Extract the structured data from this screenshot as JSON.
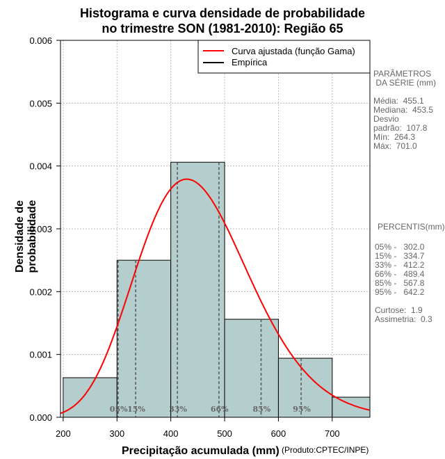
{
  "chart_data": {
    "type": "histogram",
    "title_line1": "Histograma e curva densidade de probabilidade",
    "title_line2": "no trimestre SON (1981-2010): Região 65",
    "xlabel": "Precipitação acumulada (mm)",
    "ylabel": "Densidade de probabilidade",
    "source_note": "(Produto:CPTEC/INPE)",
    "xlim": [
      195,
      770
    ],
    "ylim": [
      0,
      0.006
    ],
    "x_ticks": [
      200,
      300,
      400,
      500,
      600,
      700
    ],
    "y_ticks": [
      "0.000",
      "0.001",
      "0.002",
      "0.003",
      "0.004",
      "0.005",
      "0.006"
    ],
    "bins": [
      {
        "from": 200,
        "to": 300,
        "density": 0.00063
      },
      {
        "from": 300,
        "to": 400,
        "density": 0.0025
      },
      {
        "from": 400,
        "to": 500,
        "density": 0.00406
      },
      {
        "from": 500,
        "to": 600,
        "density": 0.00156
      },
      {
        "from": 600,
        "to": 700,
        "density": 0.00094
      },
      {
        "from": 700,
        "to": 800,
        "density": 0.00032
      }
    ],
    "gamma_fit": {
      "mean": 455.1,
      "sd": 107.8
    },
    "percentile_lines": [
      {
        "label": "05%",
        "x": 302.0
      },
      {
        "label": "15%",
        "x": 334.7
      },
      {
        "label": "33%",
        "x": 412.2
      },
      {
        "label": "66%",
        "x": 489.4
      },
      {
        "label": "85%",
        "x": 567.8
      },
      {
        "label": "95%",
        "x": 642.2
      }
    ],
    "legend": [
      {
        "label": "Curva ajustada (função Gama)",
        "color": "#ff0000"
      },
      {
        "label": "Empírica",
        "color": "#000000"
      }
    ],
    "colors": {
      "bar": "#b4cdcd",
      "curve": "#ff0000",
      "grid": "#bbbbbb",
      "percentile": "#555555"
    }
  },
  "side_panel": {
    "params_header1": "PARÂMETROS",
    "params_header2": " DA SÉRIE (mm)",
    "media": "Média:  455.1",
    "mediana": "Mediana:  453.5",
    "desvio1": "Desvio",
    "desvio2": "padrão:  107.8",
    "min": "Mín:  264.3",
    "max": "Máx:  701.0",
    "percentis_header": "PERCENTIS(mm)",
    "p05": "05% -   302.0",
    "p15": "15% -   334.7",
    "p33": "33% -   412.2",
    "p66": "66% -   489.4",
    "p85": "85% -   567.8",
    "p95": "95% -   642.2",
    "curtose": "Curtose:  1.9",
    "assimetria": "Assimetria:  0.3"
  }
}
